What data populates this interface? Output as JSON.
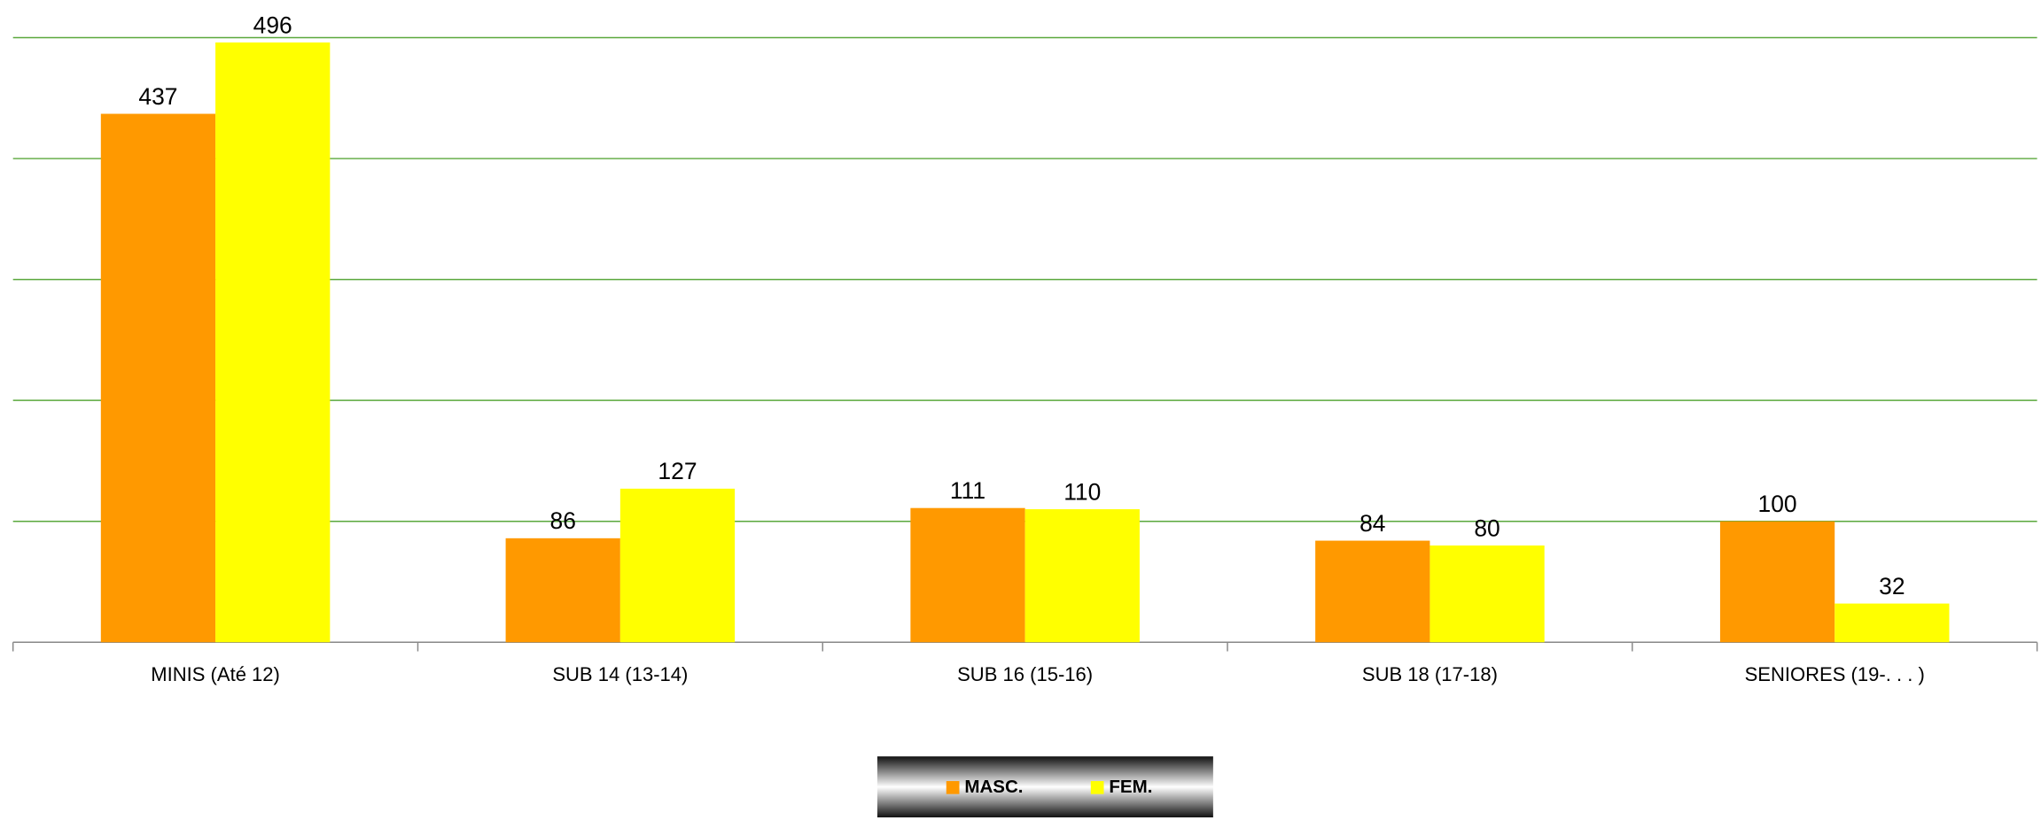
{
  "chart_data": {
    "type": "bar",
    "categories": [
      "MINIS (Até 12)",
      "SUB 14 (13-14)",
      "SUB 16 (15-16)",
      "SUB 18 (17-18)",
      "SENIORES (19-. . . )"
    ],
    "series": [
      {
        "name": "MASC.",
        "color": "#ff9900",
        "values": [
          437,
          86,
          111,
          84,
          100
        ]
      },
      {
        "name": "FEM.",
        "color": "#ffff00",
        "values": [
          496,
          127,
          110,
          80,
          32
        ]
      }
    ],
    "ylim": [
      0,
      500
    ],
    "yticks": [
      0,
      100,
      200,
      300,
      400,
      500
    ],
    "grid": true,
    "legend": "bottom"
  }
}
